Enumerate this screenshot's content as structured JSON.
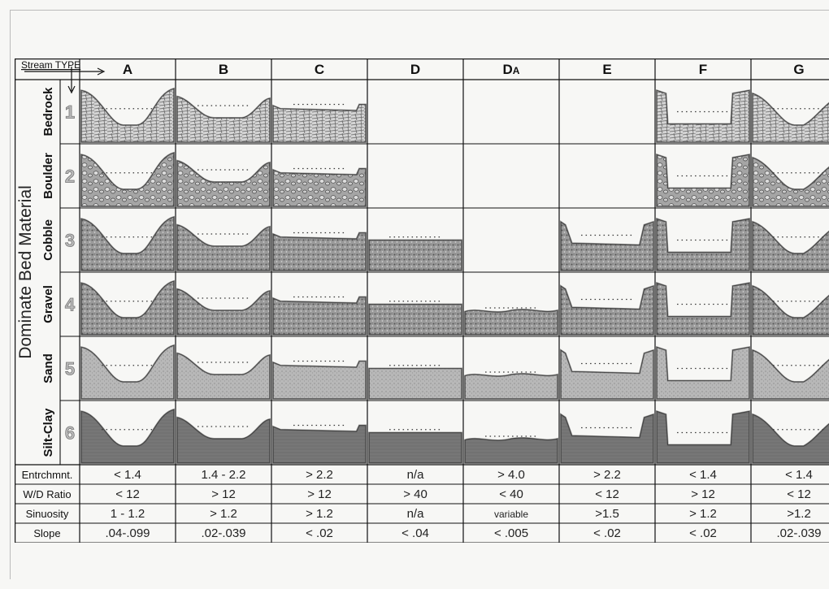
{
  "axis": {
    "corner_label": "Stream TYPE",
    "row_axis_label": "Dominate Bed Material"
  },
  "columns": [
    {
      "id": "A",
      "label": "A"
    },
    {
      "id": "B",
      "label": "B"
    },
    {
      "id": "C",
      "label": "C"
    },
    {
      "id": "D",
      "label": "D"
    },
    {
      "id": "DA",
      "label": "D",
      "sub": "A"
    },
    {
      "id": "E",
      "label": "E"
    },
    {
      "id": "F",
      "label": "F"
    },
    {
      "id": "G",
      "label": "G"
    }
  ],
  "rows": [
    {
      "num": "1",
      "material": "Bedrock",
      "present": [
        true,
        true,
        true,
        false,
        false,
        false,
        true,
        true
      ]
    },
    {
      "num": "2",
      "material": "Boulder",
      "present": [
        true,
        true,
        true,
        false,
        false,
        false,
        true,
        true
      ]
    },
    {
      "num": "3",
      "material": "Cobble",
      "present": [
        true,
        true,
        true,
        true,
        false,
        true,
        true,
        true
      ]
    },
    {
      "num": "4",
      "material": "Gravel",
      "present": [
        true,
        true,
        true,
        true,
        true,
        true,
        true,
        true
      ]
    },
    {
      "num": "5",
      "material": "Sand",
      "present": [
        true,
        true,
        true,
        true,
        true,
        true,
        true,
        true
      ]
    },
    {
      "num": "6",
      "material": "Silt-Clay",
      "present": [
        true,
        true,
        true,
        true,
        true,
        true,
        true,
        true
      ]
    }
  ],
  "properties": [
    {
      "label": "Entrchmnt.",
      "values": [
        "< 1.4",
        "1.4 - 2.2",
        "> 2.2",
        "n/a",
        "> 4.0",
        "> 2.2",
        "< 1.4",
        "< 1.4"
      ]
    },
    {
      "label": "W/D Ratio",
      "values": [
        "< 12",
        "> 12",
        "> 12",
        "> 40",
        "< 40",
        "< 12",
        "> 12",
        "< 12"
      ]
    },
    {
      "label": "Sinuosity",
      "values": [
        "1 - 1.2",
        "> 1.2",
        "> 1.2",
        "n/a",
        "variable",
        ">1.5",
        "> 1.2",
        ">1.2"
      ]
    },
    {
      "label": "Slope",
      "values": [
        ".04-.099",
        ".02-.039",
        "< .02",
        "< .04",
        "< .005",
        "< .02",
        "< .02",
        ".02-.039"
      ]
    }
  ],
  "colors": {
    "substrate": "#8a8a8a",
    "bank_dark": "#444444",
    "bank_light": "#b5b5b5",
    "water_line": "#333333"
  }
}
